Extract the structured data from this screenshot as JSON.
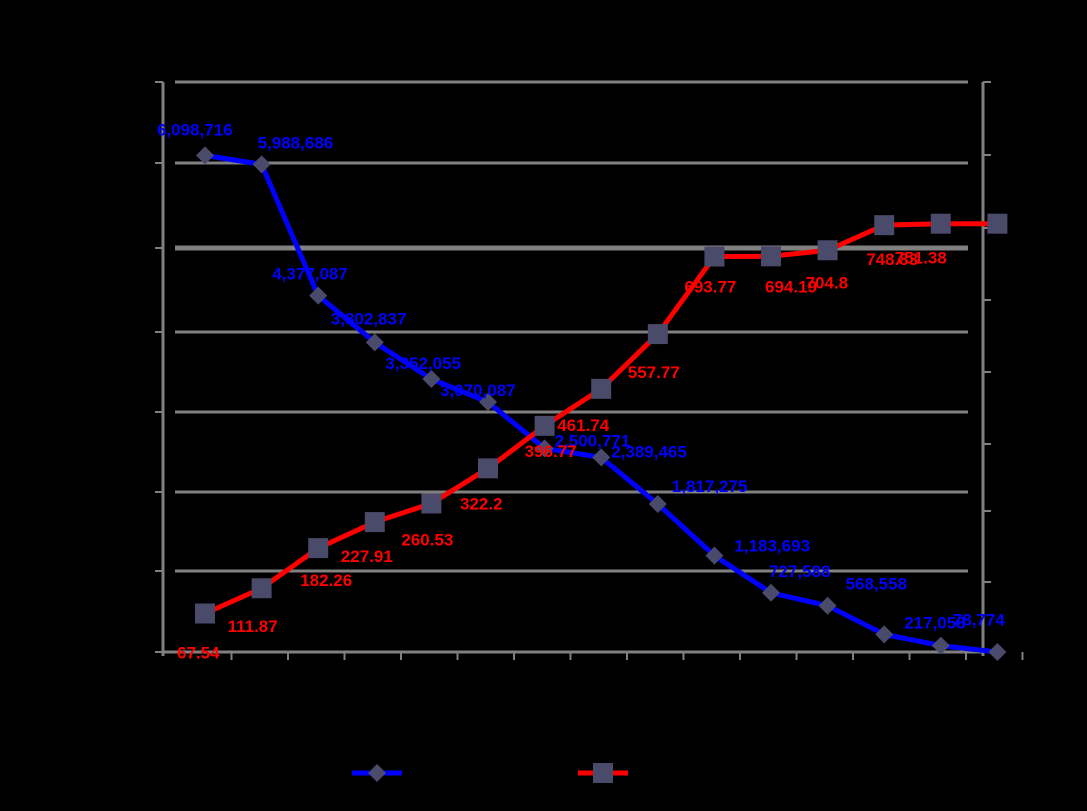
{
  "colors": {
    "background": "#000000",
    "grid": "#808080",
    "series_blue": "#0000ff",
    "series_red": "#ff0000",
    "marker": "#4a4a6a"
  },
  "chart_data": {
    "type": "line",
    "title": "",
    "xlabel": "",
    "ylabel": "",
    "grid": true,
    "legend_placement": "bottom-center",
    "x": [
      1,
      2,
      3,
      4,
      5,
      6,
      7,
      8,
      9,
      10,
      11,
      12,
      13,
      14,
      15
    ],
    "series": [
      {
        "axis": "left",
        "marker": "diamond",
        "color": "#0000ff",
        "values": [
          6098716,
          5988686,
          4377087,
          3802837,
          3352055,
          3070087,
          2500771,
          2389465,
          1817275,
          1183693,
          727588,
          568558,
          217058,
          78774,
          0
        ],
        "labels": [
          "6,098,716",
          "5,988,686",
          "4,377,087",
          "3,802,837",
          "3,352,055",
          "3,070,087",
          "2,500,771",
          "2,389,465",
          "1,817,275",
          "1,183,693",
          "727,588",
          "568,558",
          "217,058",
          "78,774",
          ""
        ]
      },
      {
        "axis": "right",
        "marker": "square",
        "color": "#ff0000",
        "values": [
          67.54,
          111.87,
          182.26,
          227.91,
          260.53,
          322.2,
          396.77,
          461.74,
          557.77,
          693.77,
          694.19,
          704.8,
          748.83,
          751.38,
          751.38
        ],
        "labels": [
          "67.54",
          "111.87",
          "182.26",
          "227.91",
          "260.53",
          "322.2",
          "396.77",
          "461.74",
          "557.77",
          "693.77",
          "694.19",
          "704.8",
          "748.83",
          "751.38",
          ""
        ]
      }
    ]
  }
}
